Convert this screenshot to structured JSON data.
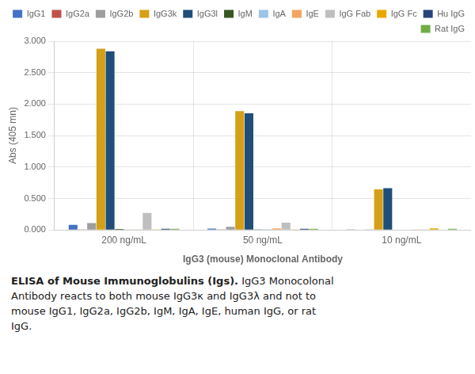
{
  "chart_data": {
    "type": "bar",
    "categories": [
      "200 ng/mL",
      "50 ng/mL",
      "10 ng/mL"
    ],
    "series": [
      {
        "name": "IgG1",
        "color": "#4472C4",
        "values": [
          0.082,
          0.022,
          0.008
        ]
      },
      {
        "name": "IgG2a",
        "color": "#C0504D",
        "values": [
          0.003,
          0.003,
          0.005
        ]
      },
      {
        "name": "IgG2b",
        "color": "#9E9E9E",
        "values": [
          0.11,
          0.05,
          0.01
        ]
      },
      {
        "name": "IgG3k",
        "color": "#D4A017",
        "values": [
          2.88,
          1.89,
          0.645
        ]
      },
      {
        "name": "IgG3l",
        "color": "#1F4E79",
        "values": [
          2.84,
          1.855,
          0.665
        ]
      },
      {
        "name": "IgM",
        "color": "#375623",
        "values": [
          0.015,
          0.008,
          0.005
        ]
      },
      {
        "name": "IgA",
        "color": "#9DC3E6",
        "values": [
          0.008,
          0.012,
          0.005
        ]
      },
      {
        "name": "IgE",
        "color": "#F4A460",
        "values": [
          0.008,
          0.025,
          0.01
        ]
      },
      {
        "name": "IgG Fab",
        "color": "#BFBFBF",
        "values": [
          0.27,
          0.115,
          0.008
        ]
      },
      {
        "name": "IgG Fc",
        "color": "#E8A800",
        "values": [
          0.008,
          0.01,
          0.025
        ]
      },
      {
        "name": "Hu IgG",
        "color": "#264478",
        "values": [
          0.018,
          0.018,
          0.005
        ]
      },
      {
        "name": "Rat IgG",
        "color": "#70AD47",
        "values": [
          0.018,
          0.018,
          0.018
        ]
      }
    ],
    "ylabel": "Abs (405 mn)",
    "xlabel": "IgG3 (mouse) Monoclonal Antibody",
    "ylim": [
      0.0,
      3.0
    ],
    "yticks": [
      {
        "value": 0,
        "label": "0.000"
      },
      {
        "value": 0.5,
        "label": "0.500"
      },
      {
        "value": 1,
        "label": "1.000"
      },
      {
        "value": 1.5,
        "label": "1.500"
      },
      {
        "value": 2,
        "label": "2.000"
      },
      {
        "value": 2.5,
        "label": "2.500"
      },
      {
        "value": 3,
        "label": "3.000"
      }
    ],
    "grid": true,
    "legend": "upper right",
    "caption_bold": "ELISA of Mouse Immunoglobulins (Igs).",
    "caption": [
      "IgG3 Monocolonal",
      "Antibody reacts to both mouse IgG3κ and IgG3λ and not to",
      "mouse IgG1, IgG2a, IgG2b, IgM, IgA, IgE, human IgG, or rat",
      "IgG."
    ]
  }
}
